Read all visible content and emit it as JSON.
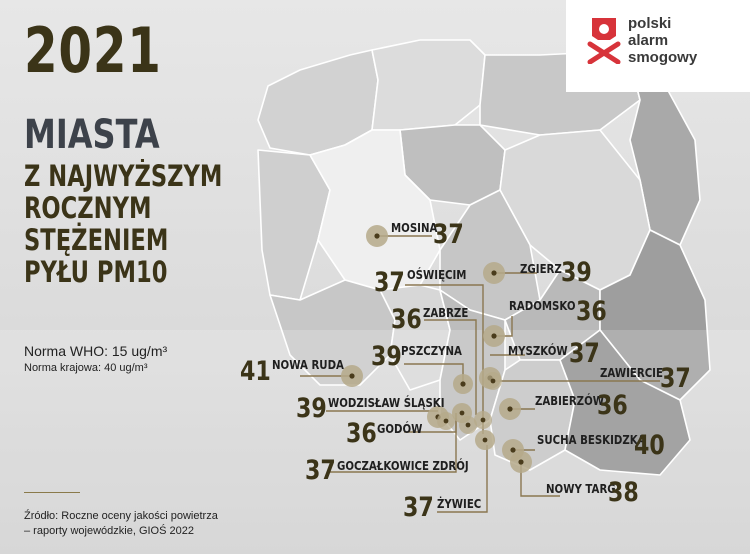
{
  "title": {
    "year": "2021",
    "main": "MIASTA",
    "lines": [
      "Z NAJWYŻSZYM",
      "ROCZNYM",
      "STĘŻENIEM",
      "PYŁU PM10"
    ]
  },
  "norms": {
    "who": "Norma WHO: 15 ug/m³",
    "national": "Norma krajowa: 40 ug/m³"
  },
  "source": {
    "line1": "Źródło: Roczne oceny jakości powietrza",
    "line2": "– raporty wojewódzkie, GIOŚ 2022"
  },
  "logo": {
    "line1": "polski",
    "line2": "alarm",
    "line3": "smogowy",
    "accent_color": "#d7333a"
  },
  "colors": {
    "title_dark": "#3b3418",
    "title_grey": "#3d424a",
    "marker": "#b5a989",
    "marker_dot": "#4a3c1c",
    "leader": "#8a7750"
  },
  "cities": [
    {
      "name": "MOSINA",
      "value": "37"
    },
    {
      "name": "ZGIERZ",
      "value": "39"
    },
    {
      "name": "OŚWIĘCIM",
      "value": "37"
    },
    {
      "name": "RADOMSKO",
      "value": "36"
    },
    {
      "name": "ZABRZE",
      "value": "36"
    },
    {
      "name": "MYSZKÓW",
      "value": "37"
    },
    {
      "name": "PSZCZYNA",
      "value": "39"
    },
    {
      "name": "NOWA RUDA",
      "value": "41"
    },
    {
      "name": "ZAWIERCIE",
      "value": "37"
    },
    {
      "name": "WODZISŁAW ŚLĄSKI",
      "value": "39"
    },
    {
      "name": "ZABIERZÓW",
      "value": "36"
    },
    {
      "name": "GODÓW",
      "value": "36"
    },
    {
      "name": "SUCHA BESKIDZKA",
      "value": "40"
    },
    {
      "name": "GOCZAŁKOWICE ZDRÓJ",
      "value": "37"
    },
    {
      "name": "NOWY TARG",
      "value": "38"
    },
    {
      "name": "ŻYWIEC",
      "value": "37"
    }
  ]
}
